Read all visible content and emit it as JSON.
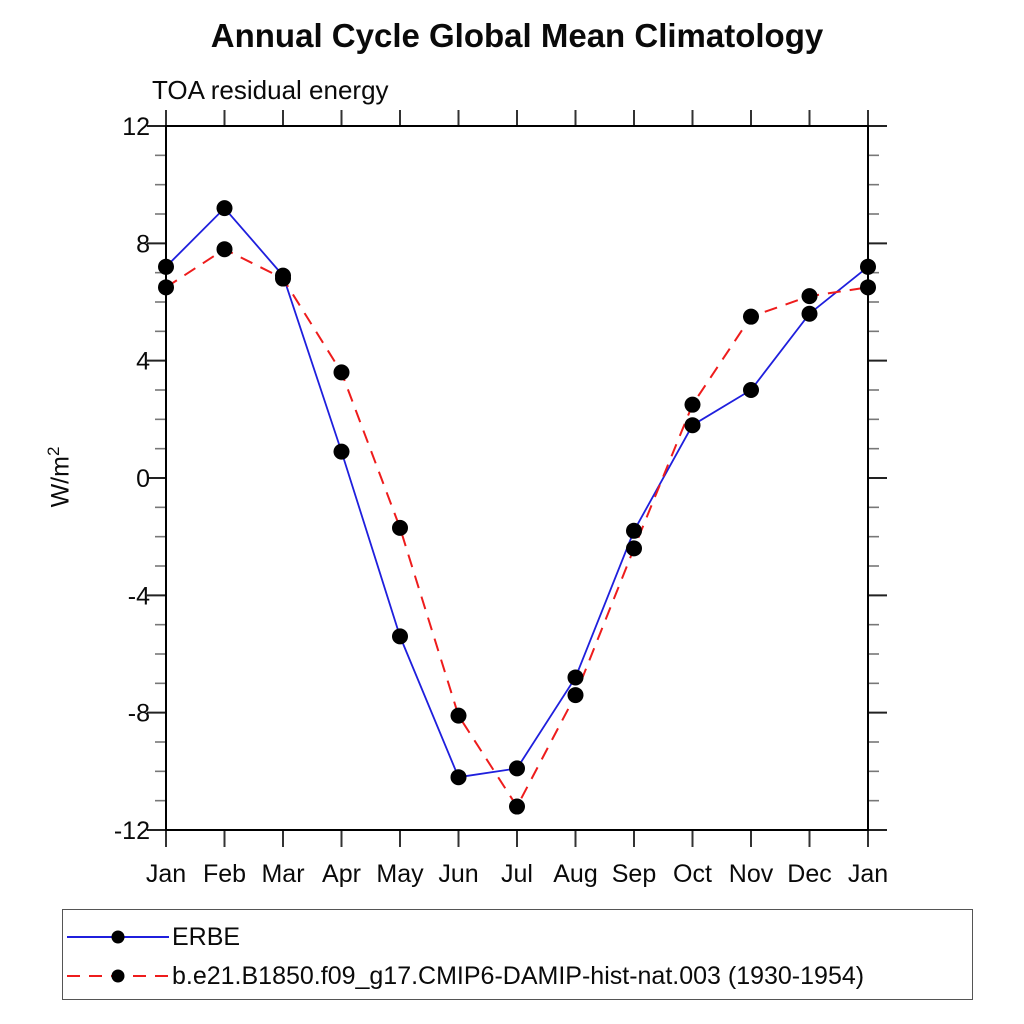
{
  "chart": {
    "title": "Annual Cycle Global Mean Climatology",
    "subtitle": "TOA residual energy",
    "ylabel_base": "W/m",
    "ylabel_sup": "2"
  },
  "chart_data": {
    "type": "line",
    "title": "Annual Cycle Global Mean Climatology",
    "subtitle": "TOA residual energy",
    "xlabel": "",
    "ylabel": "W/m^2",
    "categories": [
      "Jan",
      "Feb",
      "Mar",
      "Apr",
      "May",
      "Jun",
      "Jul",
      "Aug",
      "Sep",
      "Oct",
      "Nov",
      "Dec",
      "Jan"
    ],
    "ylim": [
      -12,
      12
    ],
    "y_ticks": [
      12,
      8,
      4,
      0,
      -4,
      -8,
      -12
    ],
    "minor_tick_step": 1,
    "grid": false,
    "legend_position": "bottom-left-box",
    "marker_color": "#000000",
    "series": [
      {
        "name": "ERBE",
        "color": "#1f1fdd",
        "style": "solid",
        "marker": "filled-circle",
        "values": [
          7.2,
          9.2,
          6.9,
          0.9,
          -5.4,
          -10.2,
          -9.9,
          -6.8,
          -1.8,
          1.8,
          3.0,
          5.6,
          7.2
        ]
      },
      {
        "name": "b.e21.B1850.f09_g17.CMIP6-DAMIP-hist-nat.003 (1930-1954)",
        "color": "#ee1c1c",
        "style": "dashed",
        "marker": "filled-circle",
        "values": [
          6.5,
          7.8,
          6.8,
          3.6,
          -1.7,
          -8.1,
          -11.2,
          -7.4,
          -2.4,
          2.5,
          5.5,
          6.2,
          6.5
        ]
      }
    ]
  },
  "legend": {
    "entries": [
      {
        "label": "ERBE"
      },
      {
        "label": "b.e21.B1850.f09_g17.CMIP6-DAMIP-hist-nat.003 (1930-1954)"
      }
    ]
  }
}
